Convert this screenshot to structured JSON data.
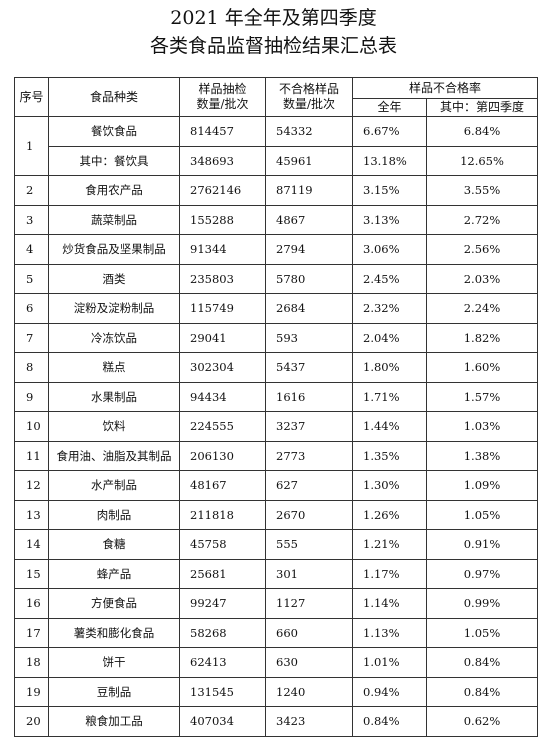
{
  "title_line1": "2021 年全年及第四季度",
  "title_line2": "各类食品监督抽检结果汇总表",
  "headers": {
    "index": "序号",
    "category": "食品种类",
    "samples_line1": "样品抽检",
    "samples_line2": "数量/批次",
    "failed_line1": "不合格样品",
    "failed_line2": "数量/批次",
    "rate_group": "样品不合格率",
    "rate_year": "全年",
    "rate_q4": "其中：第四季度"
  },
  "rows": [
    {
      "index": "1",
      "name": "餐饮食品",
      "samples": "814457",
      "failed": "54332",
      "rate_year": "6.67%",
      "rate_q4": "6.84%"
    },
    {
      "index": "",
      "name": "其中：餐饮具",
      "samples": "348693",
      "failed": "45961",
      "rate_year": "13.18%",
      "rate_q4": "12.65%"
    },
    {
      "index": "2",
      "name": "食用农产品",
      "samples": "2762146",
      "failed": "87119",
      "rate_year": "3.15%",
      "rate_q4": "3.55%"
    },
    {
      "index": "3",
      "name": "蔬菜制品",
      "samples": "155288",
      "failed": "4867",
      "rate_year": "3.13%",
      "rate_q4": "2.72%"
    },
    {
      "index": "4",
      "name": "炒货食品及坚果制品",
      "samples": "91344",
      "failed": "2794",
      "rate_year": "3.06%",
      "rate_q4": "2.56%"
    },
    {
      "index": "5",
      "name": "酒类",
      "samples": "235803",
      "failed": "5780",
      "rate_year": "2.45%",
      "rate_q4": "2.03%"
    },
    {
      "index": "6",
      "name": "淀粉及淀粉制品",
      "samples": "115749",
      "failed": "2684",
      "rate_year": "2.32%",
      "rate_q4": "2.24%"
    },
    {
      "index": "7",
      "name": "冷冻饮品",
      "samples": "29041",
      "failed": "593",
      "rate_year": "2.04%",
      "rate_q4": "1.82%"
    },
    {
      "index": "8",
      "name": "糕点",
      "samples": "302304",
      "failed": "5437",
      "rate_year": "1.80%",
      "rate_q4": "1.60%"
    },
    {
      "index": "9",
      "name": "水果制品",
      "samples": "94434",
      "failed": "1616",
      "rate_year": "1.71%",
      "rate_q4": "1.57%"
    },
    {
      "index": "10",
      "name": "饮料",
      "samples": "224555",
      "failed": "3237",
      "rate_year": "1.44%",
      "rate_q4": "1.03%"
    },
    {
      "index": "11",
      "name": "食用油、油脂及其制品",
      "samples": "206130",
      "failed": "2773",
      "rate_year": "1.35%",
      "rate_q4": "1.38%"
    },
    {
      "index": "12",
      "name": "水产制品",
      "samples": "48167",
      "failed": "627",
      "rate_year": "1.30%",
      "rate_q4": "1.09%"
    },
    {
      "index": "13",
      "name": "肉制品",
      "samples": "211818",
      "failed": "2670",
      "rate_year": "1.26%",
      "rate_q4": "1.05%"
    },
    {
      "index": "14",
      "name": "食糖",
      "samples": "45758",
      "failed": "555",
      "rate_year": "1.21%",
      "rate_q4": "0.91%"
    },
    {
      "index": "15",
      "name": "蜂产品",
      "samples": "25681",
      "failed": "301",
      "rate_year": "1.17%",
      "rate_q4": "0.97%"
    },
    {
      "index": "16",
      "name": "方便食品",
      "samples": "99247",
      "failed": "1127",
      "rate_year": "1.14%",
      "rate_q4": "0.99%"
    },
    {
      "index": "17",
      "name": "薯类和膨化食品",
      "samples": "58268",
      "failed": "660",
      "rate_year": "1.13%",
      "rate_q4": "1.05%"
    },
    {
      "index": "18",
      "name": "饼干",
      "samples": "62413",
      "failed": "630",
      "rate_year": "1.01%",
      "rate_q4": "0.84%"
    },
    {
      "index": "19",
      "name": "豆制品",
      "samples": "131545",
      "failed": "1240",
      "rate_year": "0.94%",
      "rate_q4": "0.84%"
    },
    {
      "index": "20",
      "name": "粮食加工品",
      "samples": "407034",
      "failed": "3423",
      "rate_year": "0.84%",
      "rate_q4": "0.62%"
    }
  ]
}
